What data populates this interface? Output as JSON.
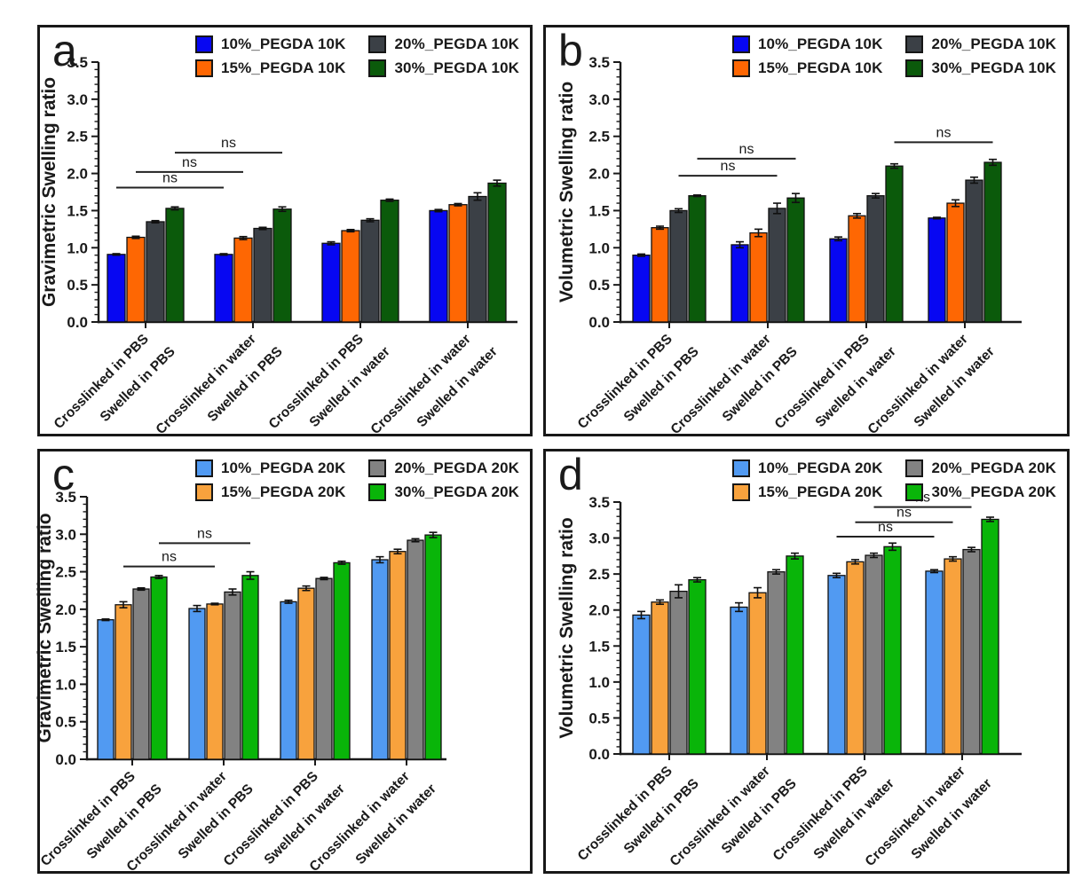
{
  "figure": {
    "background": "#ffffff",
    "description_note": "Four-panel grouped bar figure of PEGDA hydrogel swelling ratios"
  },
  "chart_data": [
    {
      "panel": "a",
      "type": "bar",
      "ylabel": "Gravimetric Swelling ratio",
      "ylim": [
        0,
        3.5
      ],
      "ytick_step": 0.5,
      "y_minor_step": 0.1,
      "grid": false,
      "legend_position": "top-right",
      "categories": [
        [
          "Crosslinked in PBS",
          "Swelled in PBS"
        ],
        [
          "Crosslinked in water",
          "Swelled in PBS"
        ],
        [
          "Crosslinked in PBS",
          "Swelled in water"
        ],
        [
          "Crosslinked in water",
          "Swelled in water"
        ]
      ],
      "series": [
        {
          "name": "10%_PEGDA 10K",
          "color": "#0707f2",
          "values": [
            0.91,
            0.91,
            1.06,
            1.5
          ],
          "errors": [
            0.01,
            0.01,
            0.02,
            0.015
          ]
        },
        {
          "name": "15%_PEGDA 10K",
          "color": "#fe6703",
          "values": [
            1.14,
            1.13,
            1.23,
            1.58
          ],
          "errors": [
            0.015,
            0.02,
            0.015,
            0.015
          ]
        },
        {
          "name": "20%_PEGDA 10K",
          "color": "#3b4046",
          "values": [
            1.35,
            1.26,
            1.37,
            1.69
          ],
          "errors": [
            0.015,
            0.015,
            0.02,
            0.05
          ]
        },
        {
          "name": "30%_PEGDA 10K",
          "color": "#0b5a0b",
          "values": [
            1.53,
            1.52,
            1.64,
            1.87
          ],
          "errors": [
            0.02,
            0.03,
            0.015,
            0.04
          ]
        }
      ],
      "annotations": [
        {
          "label": "ns",
          "from": [
            0,
            0
          ],
          "to": [
            1,
            0
          ],
          "y": 1.81
        },
        {
          "label": "ns",
          "from": [
            0,
            1
          ],
          "to": [
            1,
            1
          ],
          "y": 2.02
        },
        {
          "label": "ns",
          "from": [
            0,
            3
          ],
          "to": [
            1,
            3
          ],
          "y": 2.28
        }
      ]
    },
    {
      "panel": "b",
      "type": "bar",
      "ylabel": "Volumetric Swelling ratio",
      "ylim": [
        0,
        3.5
      ],
      "ytick_step": 0.5,
      "y_minor_step": 0.1,
      "grid": false,
      "legend_position": "top-right",
      "categories": [
        [
          "Crosslinked in PBS",
          "Swelled in PBS"
        ],
        [
          "Crosslinked in water",
          "Swelled in PBS"
        ],
        [
          "Crosslinked in PBS",
          "Swelled in water"
        ],
        [
          "Crosslinked in water",
          "Swelled in water"
        ]
      ],
      "series": [
        {
          "name": "10%_PEGDA 10K",
          "color": "#0707f2",
          "values": [
            0.9,
            1.04,
            1.12,
            1.4
          ],
          "errors": [
            0.015,
            0.04,
            0.025,
            0.01
          ]
        },
        {
          "name": "15%_PEGDA 10K",
          "color": "#fe6703",
          "values": [
            1.27,
            1.2,
            1.43,
            1.6
          ],
          "errors": [
            0.02,
            0.05,
            0.03,
            0.045
          ]
        },
        {
          "name": "20%_PEGDA 10K",
          "color": "#3b4046",
          "values": [
            1.5,
            1.53,
            1.7,
            1.91
          ],
          "errors": [
            0.025,
            0.07,
            0.03,
            0.04
          ]
        },
        {
          "name": "30%_PEGDA 10K",
          "color": "#0b5a0b",
          "values": [
            1.7,
            1.67,
            2.1,
            2.15
          ],
          "errors": [
            0.01,
            0.06,
            0.03,
            0.04
          ]
        }
      ],
      "annotations": [
        {
          "label": "ns",
          "from": [
            0,
            2
          ],
          "to": [
            1,
            2
          ],
          "y": 1.97
        },
        {
          "label": "ns",
          "from": [
            0,
            3
          ],
          "to": [
            1,
            3
          ],
          "y": 2.2
        },
        {
          "label": "ns",
          "from": [
            2,
            3
          ],
          "to": [
            3,
            3
          ],
          "y": 2.42
        }
      ]
    },
    {
      "panel": "c",
      "type": "bar",
      "ylabel": "Gravimetric Swelling ratio",
      "ylim": [
        0,
        3.5
      ],
      "ytick_step": 0.5,
      "y_minor_step": 0.1,
      "grid": false,
      "legend_position": "top-right",
      "categories": [
        [
          "Crosslinked in PBS",
          "Swelled in PBS"
        ],
        [
          "Crosslinked in water",
          "Swelled in PBS"
        ],
        [
          "Crosslinked in PBS",
          "Swelled in water"
        ],
        [
          "Crosslinked in water",
          "Swelled in water"
        ]
      ],
      "series": [
        {
          "name": "10%_PEGDA 20K",
          "color": "#519af2",
          "values": [
            1.86,
            2.01,
            2.1,
            2.66
          ],
          "errors": [
            0.01,
            0.04,
            0.02,
            0.04
          ]
        },
        {
          "name": "15%_PEGDA 20K",
          "color": "#f8a23d",
          "values": [
            2.06,
            2.07,
            2.28,
            2.77
          ],
          "errors": [
            0.04,
            0.01,
            0.03,
            0.03
          ]
        },
        {
          "name": "20%_PEGDA 20K",
          "color": "#828282",
          "values": [
            2.27,
            2.23,
            2.41,
            2.92
          ],
          "errors": [
            0.015,
            0.04,
            0.015,
            0.02
          ]
        },
        {
          "name": "30%_PEGDA 20K",
          "color": "#09b509",
          "values": [
            2.43,
            2.45,
            2.62,
            2.99
          ],
          "errors": [
            0.02,
            0.05,
            0.02,
            0.035
          ]
        }
      ],
      "annotations": [
        {
          "label": "ns",
          "from": [
            0,
            1
          ],
          "to": [
            1,
            1
          ],
          "y": 2.57
        },
        {
          "label": "ns",
          "from": [
            0,
            3
          ],
          "to": [
            1,
            3
          ],
          "y": 2.88
        }
      ]
    },
    {
      "panel": "d",
      "type": "bar",
      "ylabel": "Volumetric Swelling ratio",
      "ylim": [
        0,
        3.5
      ],
      "ytick_step": 0.5,
      "y_minor_step": 0.1,
      "grid": false,
      "legend_position": "top-right",
      "categories": [
        [
          "Crosslinked in PBS",
          "Swelled in PBS"
        ],
        [
          "Crosslinked in water",
          "Swelled in PBS"
        ],
        [
          "Crosslinked in PBS",
          "Swelled in water"
        ],
        [
          "Crosslinked in water",
          "Swelled in water"
        ]
      ],
      "series": [
        {
          "name": "10%_PEGDA 20K",
          "color": "#519af2",
          "values": [
            1.93,
            2.04,
            2.48,
            2.54
          ],
          "errors": [
            0.05,
            0.06,
            0.03,
            0.02
          ]
        },
        {
          "name": "15%_PEGDA 20K",
          "color": "#f8a23d",
          "values": [
            2.11,
            2.24,
            2.67,
            2.71
          ],
          "errors": [
            0.03,
            0.07,
            0.03,
            0.03
          ]
        },
        {
          "name": "20%_PEGDA 20K",
          "color": "#828282",
          "values": [
            2.26,
            2.53,
            2.76,
            2.84
          ],
          "errors": [
            0.09,
            0.03,
            0.03,
            0.03
          ]
        },
        {
          "name": "30%_PEGDA 20K",
          "color": "#09b509",
          "values": [
            2.42,
            2.75,
            2.88,
            3.26
          ],
          "errors": [
            0.03,
            0.04,
            0.05,
            0.03
          ]
        }
      ],
      "annotations": [
        {
          "label": "ns",
          "from": [
            2,
            0
          ],
          "to": [
            3,
            0
          ],
          "y": 3.02
        },
        {
          "label": "ns",
          "from": [
            2,
            1
          ],
          "to": [
            3,
            1
          ],
          "y": 3.22
        },
        {
          "label": "ns",
          "from": [
            2,
            2
          ],
          "to": [
            3,
            2
          ],
          "y": 3.43
        }
      ]
    }
  ]
}
